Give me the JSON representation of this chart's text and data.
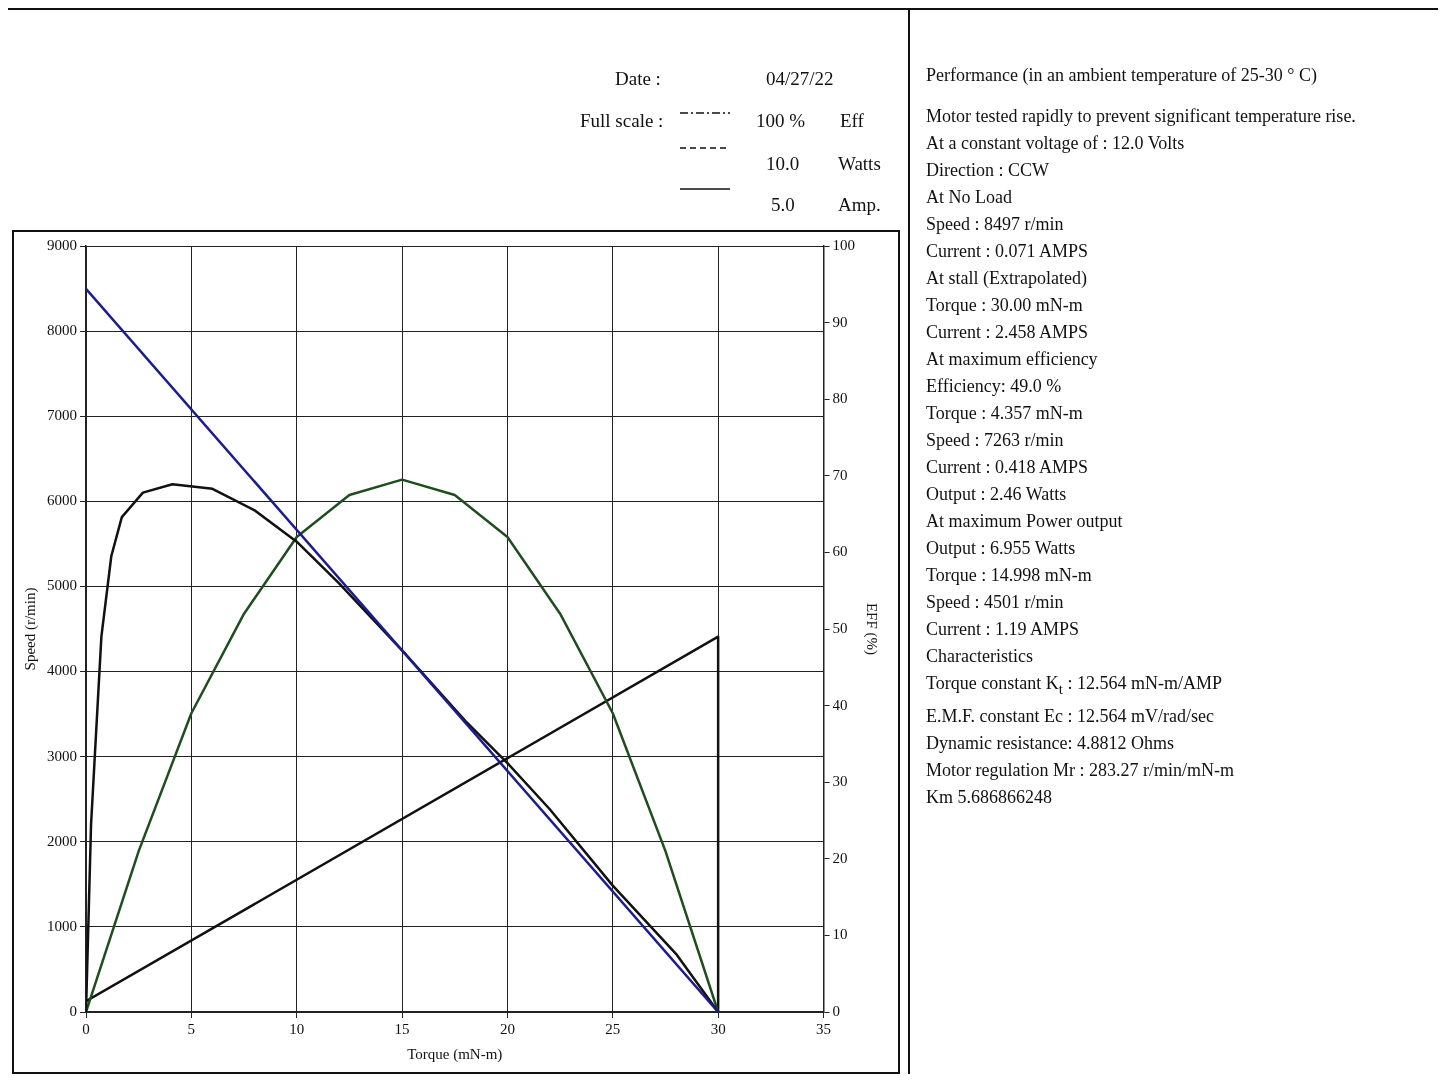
{
  "chart_data": [
    {
      "type": "line",
      "xlabel": "Torque (mN-m)",
      "ylabel": "Speed (r/min)",
      "y2label": "EFF (%)",
      "annotations": [
        "Date :",
        "04/27/22",
        "Full scale :",
        "100 %",
        "Eff",
        "10.0",
        "Watts",
        "5.0",
        "Amp."
      ],
      "xlim": [
        0,
        35
      ],
      "xticks": [
        0,
        5,
        10,
        15,
        20,
        25,
        30,
        35
      ],
      "ylim": [
        0,
        9000
      ],
      "yticks": [
        0,
        1000,
        2000,
        3000,
        4000,
        5000,
        6000,
        7000,
        8000,
        9000
      ],
      "y2lim": [
        0,
        100
      ],
      "y2ticks": [
        0,
        10,
        20,
        30,
        40,
        50,
        60,
        70,
        80,
        90,
        100
      ],
      "grid": true,
      "series": [
        {
          "color": "#1c1c8c",
          "axis": "y",
          "x": [
            0,
            30
          ],
          "values": [
            8497,
            0
          ]
        },
        {
          "color": "#111111",
          "axis": "y2",
          "x": [
            0,
            0.24,
            0.73,
            1.2,
            1.7,
            2.7,
            4.1,
            6,
            8,
            10,
            12,
            15,
            18,
            20,
            22,
            25,
            28,
            30
          ],
          "values": [
            0,
            24.5,
            49,
            59.5,
            64.6,
            67.8,
            68.9,
            68.3,
            65.5,
            61.4,
            56,
            47.2,
            38,
            32.5,
            26.5,
            16.5,
            7.6,
            0
          ]
        },
        {
          "color": "#1e4d1e",
          "axis": "y2",
          "x": [
            0,
            2.5,
            5,
            7.5,
            10,
            12.5,
            15,
            17.5,
            20,
            22.5,
            25,
            27.5,
            30
          ],
          "values": [
            0,
            21,
            39,
            52,
            62,
            67.5,
            69.5,
            67.5,
            62,
            52,
            39,
            21,
            0
          ]
        },
        {
          "color": "#111111",
          "axis": "y2",
          "x": [
            0,
            30,
            30
          ],
          "values": [
            1.4,
            49,
            0
          ]
        }
      ]
    },
    {
      "type": "other",
      "title": "Performance (in an ambient temperature of 25-30 ° C)",
      "annotations": [
        "Motor tested rapidly to prevent significant temperature rise.",
        "At a constant voltage of : 12.0 Volts",
        "Direction : CCW",
        "At No Load",
        "Speed : 8497 r/min",
        "Current : 0.071 AMPS",
        "At stall (Extrapolated)",
        "Torque : 30.00 mN-m",
        "Current : 2.458 AMPS",
        "At maximum efficiency",
        "Efficiency: 49.0 %",
        "Torque : 4.357 mN-m",
        "Speed : 7263 r/min",
        "Current : 0.418 AMPS",
        "Output : 2.46 Watts",
        "At maximum Power output",
        "Output : 6.955 Watts",
        "Torque : 14.998 mN-m",
        "Speed : 4501 r/min",
        "Current : 1.19 AMPS",
        "Characteristics",
        "Torque constant K$_{t}$ : 12.564 mN-m/AMP",
        "E.M.F. constant Ec : 12.564 mV/rad/sec",
        "Dynamic resistance: 4.8812 Ohms",
        "Motor regulation Mr : 283.27 r/min/mN-m",
        "Km 5.686866248"
      ]
    }
  ]
}
